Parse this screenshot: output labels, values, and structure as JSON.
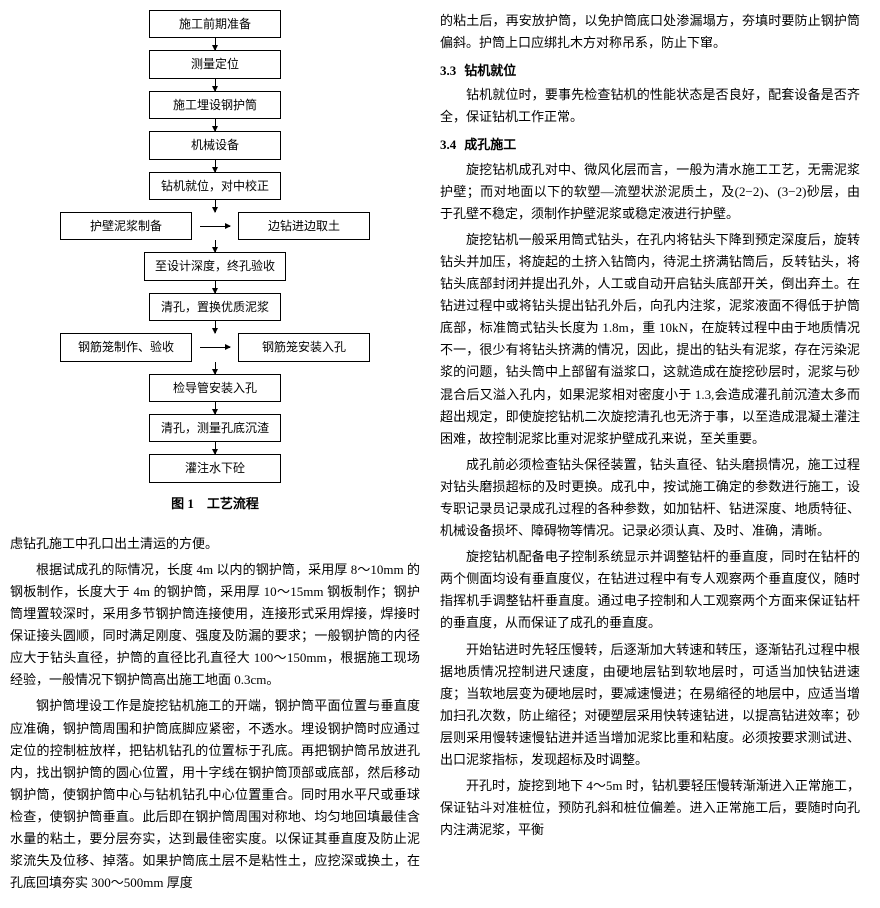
{
  "flowchart": {
    "steps": [
      "施工前期准备",
      "测量定位",
      "施工埋设钢护筒",
      "机械设备",
      "钻机就位，对中校正",
      "至设计深度，终孔验收",
      "清孔，置换优质泥浆",
      "检导管安装入孔",
      "清孔，测量孔底沉渣",
      "灌注水下砼"
    ],
    "side5_left": "护壁泥浆制备",
    "side5_right": "边钻进边取土",
    "side7_left": "钢筋笼制作、验收",
    "side7_right": "钢筋笼安装入孔",
    "caption": "图 1　工艺流程"
  },
  "left": {
    "p1": "虑钻孔施工中孔口出土清运的方便。",
    "p2": "根据试成孔的际情况，长度 4m 以内的钢护筒，采用厚 8～10mm 的钢板制作，长度大于 4m 的钢护筒，采用厚 10～15mm 钢板制作；钢护筒埋置较深时，采用多节钢护筒连接使用，连接形式采用焊接，焊接时保证接头圆顺，同时满足刚度、强度及防漏的要求；一般钢护筒的内径应大于钻头直径，护筒的直径比孔直径大 100～150mm，根据施工现场经验，一般情况下钢护筒高出施工地面 0.3cm。",
    "p3": "钢护筒埋设工作是旋挖钻机施工的开端，钢护筒平面位置与垂直度应准确，钢护筒周围和护筒底脚应紧密，不透水。埋设钢护筒时应通过定位的控制桩放样，把钻机钻孔的位置标于孔底。再把钢护筒吊放进孔内，找出钢护筒的圆心位置，用十字线在钢护筒顶部或底部，然后移动钢护筒，使钢护筒中心与钻机钻孔中心位置重合。同时用水平尺或垂球检查，使钢护筒垂直。此后即在钢护筒周围对称地、均匀地回填最佳含水量的粘土，要分层夯实，达到最佳密实度。以保证其垂直度及防止泥浆流失及位移、掉落。如果护筒底土层不是粘性土，应挖深或换土，在孔底回填夯实 300～500mm 厚度"
  },
  "right": {
    "p1": "的粘土后，再安放护筒，以免护筒底口处渗漏塌方，夯填时要防止钢护筒偏斜。护筒上口应绑扎木方对称吊系，防止下窜。",
    "s33_title_num": "3.3",
    "s33_title": "钻机就位",
    "s33_p1": "钻机就位时，要事先检查钻机的性能状态是否良好，配套设备是否齐全，保证钻机工作正常。",
    "s34_title_num": "3.4",
    "s34_title": "成孔施工",
    "s34_p1": "旋挖钻机成孔对中、微风化层而言，一般为清水施工工艺，无需泥浆护壁；而对地面以下的软塑—流塑状淤泥质土，及(2−2)、(3−2)砂层，由于孔壁不稳定，须制作护壁泥浆或稳定液进行护壁。",
    "s34_p2": "旋挖钻机一般采用筒式钻头，在孔内将钻头下降到预定深度后，旋转钻头并加压，将旋起的土挤入钻筒内，待泥土挤满钻筒后，反转钻头，将钻头底部封闭并提出孔外，人工或自动开启钻头底部开关，倒出弃土。在钻进过程中或将钻头提出钻孔外后，向孔内注浆，泥浆液面不得低于护筒底部，标准筒式钻头长度为 1.8m，重 10kN，在旋转过程中由于地质情况不一，很少有将钻头挤满的情况，因此，提出的钻头有泥浆，存在污染泥浆的问题，钻头筒中上部留有溢浆口，这就造成在旋挖砂层时，泥浆与砂混合后又溢入孔内，如果泥浆相对密度小于 1.3,会造成灌孔前沉渣太多而超出规定，即使旋挖钻机二次旋挖清孔也无济于事，以至造成混凝土灌注困难，故控制泥浆比重对泥浆护壁成孔来说，至关重要。",
    "s34_p3": "成孔前必须检查钻头保径装置，钻头直径、钻头磨损情况，施工过程对钻头磨损超标的及时更换。成孔中，按试施工确定的参数进行施工，设专职记录员记录成孔过程的各种参数，如加钻杆、钻进深度、地质特征、机械设备损坏、障碍物等情况。记录必须认真、及时、准确，清晰。",
    "s34_p4": "旋挖钻机配备电子控制系统显示并调整钻杆的垂直度，同时在钻杆的两个侧面均设有垂直度仪，在钻进过程中有专人观察两个垂直度仪，随时指挥机手调整钻杆垂直度。通过电子控制和人工观察两个方面来保证钻杆的垂直度，从而保证了成孔的垂直度。",
    "s34_p5": "开始钻进时先轻压慢转，后逐渐加大转速和转压，逐渐钻孔过程中根据地质情况控制进尺速度，由硬地层钻到软地层时，可适当加快钻进速度；当软地层变为硬地层时，要减速慢进；在易缩径的地层中，应适当增加扫孔次数，防止缩径；对硬塑层采用快转速钻进，以提高钻进效率；砂层则采用慢转速慢钻进并适当增加泥浆比重和粘度。必须按要求测试进、出口泥浆指标，发现超标及时调整。",
    "s34_p6": "开孔时，旋挖到地下 4～5m 时，钻机要轻压慢转渐渐进入正常施工，保证钻斗对准桩位，预防孔斜和桩位偏差。进入正常施工后，要随时向孔内注满泥浆，平衡"
  }
}
